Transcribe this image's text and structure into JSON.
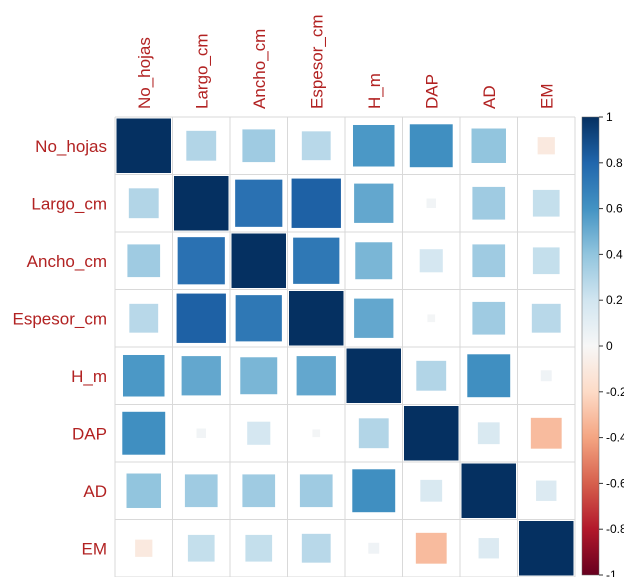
{
  "chart_data": {
    "type": "heatmap",
    "method": "square",
    "variables": [
      "No_hojas",
      "Largo_cm",
      "Ancho_cm",
      "Espesor_cm",
      "H_m",
      "DAP",
      "AD",
      "EM"
    ],
    "matrix": [
      [
        1.0,
        0.3,
        0.36,
        0.28,
        0.58,
        0.62,
        0.4,
        -0.1
      ],
      [
        0.3,
        1.0,
        0.75,
        0.82,
        0.52,
        0.03,
        0.36,
        0.24
      ],
      [
        0.36,
        0.75,
        1.0,
        0.72,
        0.46,
        0.18,
        0.36,
        0.24
      ],
      [
        0.28,
        0.82,
        0.72,
        1.0,
        0.52,
        0.02,
        0.36,
        0.28
      ],
      [
        0.58,
        0.52,
        0.46,
        0.52,
        1.0,
        0.3,
        0.62,
        0.04
      ],
      [
        0.62,
        0.03,
        0.18,
        0.02,
        0.3,
        1.0,
        0.16,
        -0.32
      ],
      [
        0.4,
        0.36,
        0.36,
        0.36,
        0.62,
        0.16,
        1.0,
        0.14
      ],
      [
        -0.1,
        0.24,
        0.24,
        0.28,
        0.04,
        -0.32,
        0.14,
        1.0
      ]
    ],
    "colorbar": {
      "min": -1,
      "max": 1,
      "ticks": [
        "1",
        "0.8",
        "0.6",
        "0.4",
        "0.2",
        "0",
        "-0.2",
        "-0.4",
        "-0.6",
        "-0.8",
        "-1"
      ]
    },
    "colors": {
      "positive": "#053061",
      "negative": "#67001F",
      "neutral": "#F7F7F7",
      "grid": "#d9d9d9",
      "label": "#b22222"
    },
    "title": "",
    "xlabel": "",
    "ylabel": ""
  }
}
